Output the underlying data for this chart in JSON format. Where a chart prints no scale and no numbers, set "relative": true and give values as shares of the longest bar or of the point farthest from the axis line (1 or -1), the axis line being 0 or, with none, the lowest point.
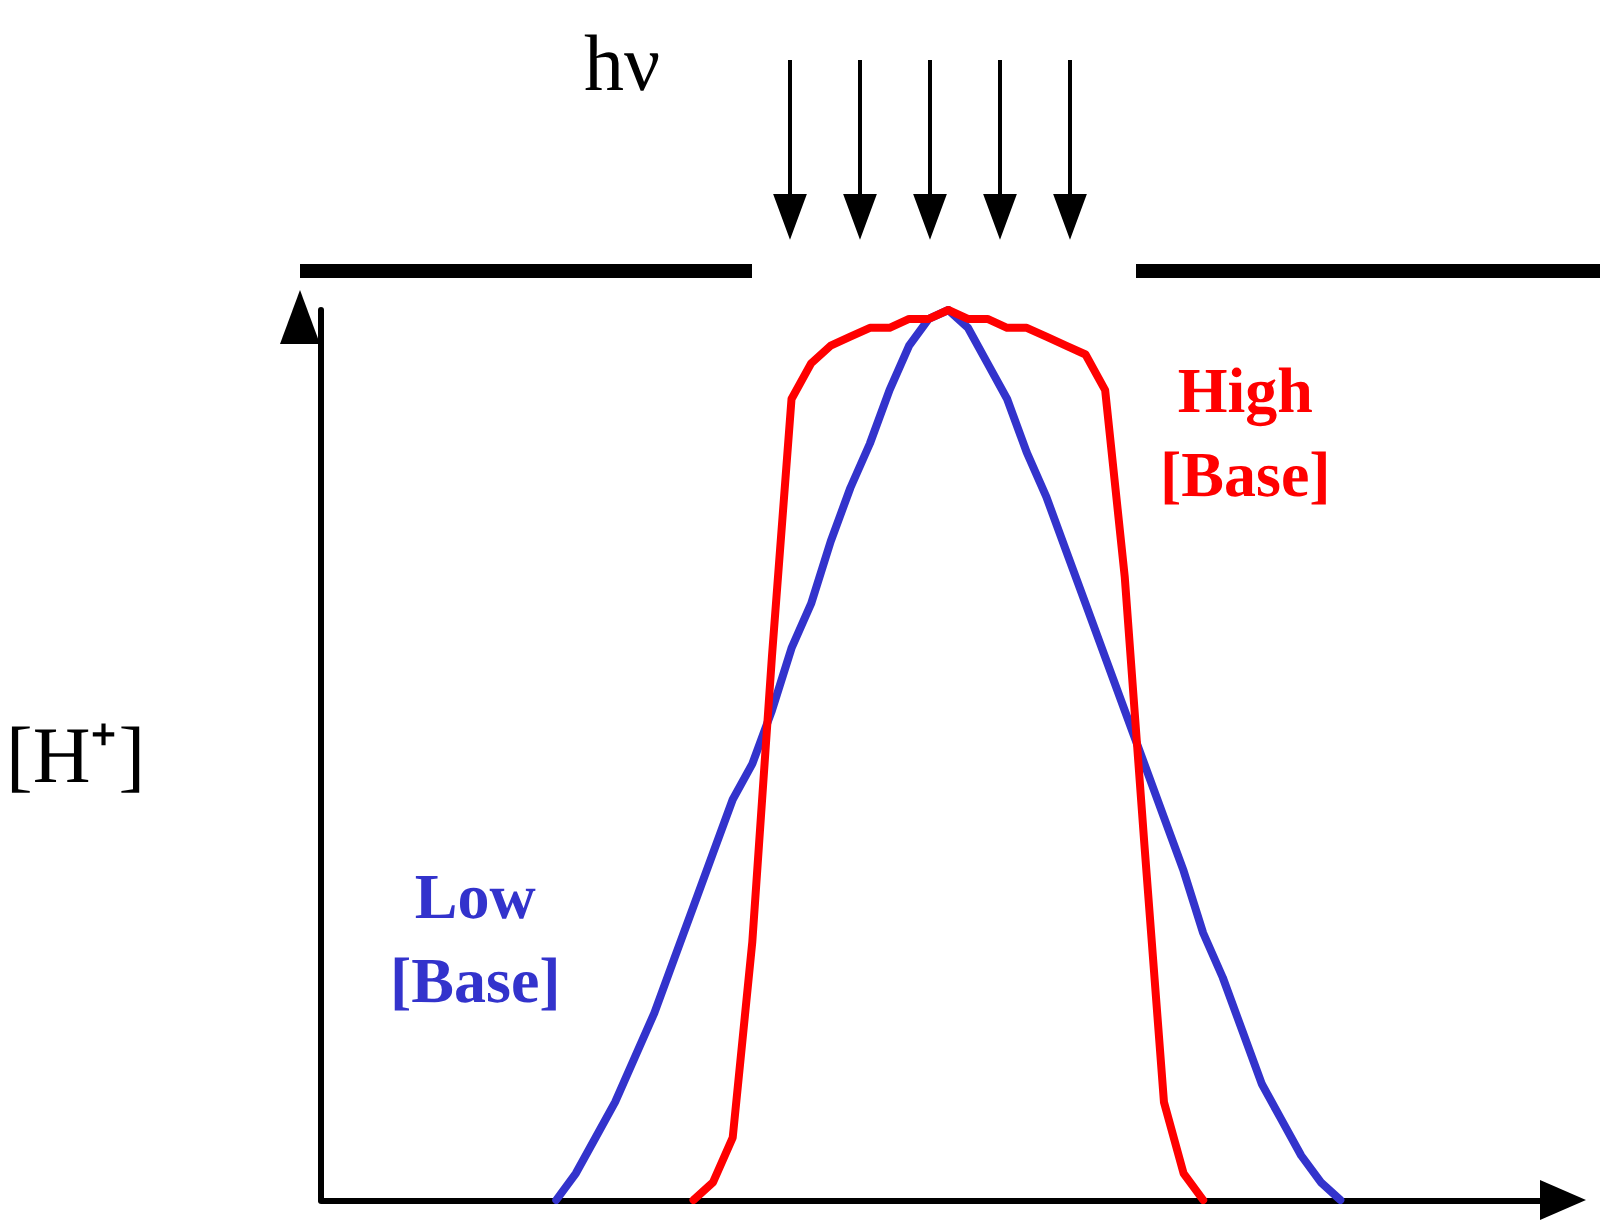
{
  "chart_data": {
    "type": "line",
    "relative": true,
    "ylabel": "[H⁺]",
    "annotations": [
      "hν"
    ],
    "legend": false,
    "grid": false,
    "marker": "none",
    "line_style": "solid",
    "categories": [
      null,
      null,
      null,
      null,
      null,
      null,
      null,
      null,
      null,
      null,
      null,
      null,
      null,
      null,
      null,
      null,
      null,
      null,
      null,
      null,
      null,
      null,
      null,
      null,
      null,
      null,
      null,
      null,
      null,
      null,
      null,
      null,
      null,
      null,
      null,
      null,
      null,
      null,
      null,
      null,
      null,
      null,
      null,
      null,
      null,
      null,
      null,
      null,
      null,
      null,
      null,
      null,
      null,
      null,
      null,
      null,
      null,
      null,
      null,
      null,
      null,
      null,
      null,
      null
    ],
    "series": [
      {
        "name": "Low [Base]",
        "color": "#3333cc",
        "values": [
          null,
          null,
          null,
          null,
          null,
          null,
          null,
          null,
          null,
          null,
          null,
          null,
          0,
          0.03,
          0.07,
          0.11,
          0.16,
          0.21,
          0.27,
          0.33,
          0.39,
          0.45,
          0.49,
          0.55,
          0.62,
          0.67,
          0.74,
          0.8,
          0.85,
          0.91,
          0.96,
          0.99,
          1,
          0.98,
          0.94,
          0.9,
          0.84,
          0.79,
          0.73,
          0.67,
          0.61,
          0.55,
          0.49,
          0.43,
          0.37,
          0.3,
          0.25,
          0.19,
          0.13,
          0.09,
          0.05,
          0.02,
          0,
          null,
          null,
          null,
          null,
          null,
          null,
          null,
          null,
          null,
          null,
          null
        ]
      },
      {
        "name": "High [Base]",
        "color": "#ff0000",
        "values": [
          null,
          null,
          null,
          null,
          null,
          null,
          null,
          null,
          null,
          null,
          null,
          null,
          null,
          null,
          null,
          null,
          null,
          null,
          null,
          0,
          0.02,
          0.07,
          0.29,
          0.61,
          0.9,
          0.94,
          0.96,
          0.97,
          0.98,
          0.98,
          0.99,
          0.99,
          1,
          0.99,
          0.99,
          0.98,
          0.98,
          0.97,
          0.96,
          0.95,
          0.91,
          0.7,
          0.4,
          0.11,
          0.03,
          0,
          null,
          null,
          null,
          null,
          null,
          null,
          null,
          null,
          null,
          null,
          null,
          null,
          null,
          null,
          null,
          null,
          null,
          null
        ]
      }
    ]
  }
}
